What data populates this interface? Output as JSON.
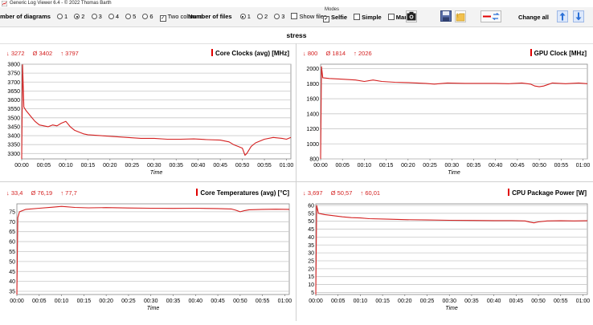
{
  "window": {
    "title": "Generic Log Viewer 6.4 - © 2022 Thomas Barth"
  },
  "toolbar": {
    "num_diagrams_label": "Number of diagrams",
    "diagram_options": [
      "1",
      "2",
      "3",
      "4",
      "5",
      "6"
    ],
    "diagram_selected": "2",
    "two_columns_label": "Two columns",
    "num_files_label": "Number of files",
    "file_options": [
      "1",
      "2",
      "3"
    ],
    "file_selected": "1",
    "show_files_label": "Show files",
    "modes_label": "Modes",
    "selfie_label": "Selfie",
    "simple_label": "Simple",
    "marker_label": "Marker",
    "change_all_label": "Change all"
  },
  "subtitle": "stress",
  "colors": {
    "series": "#d42020",
    "accent": "#e00000",
    "grid": "#c8c8c8"
  },
  "panels": [
    {
      "title": "Core Clocks (avg) [MHz]",
      "min": "↓ 3272",
      "avg": "Ø 3402",
      "max": "↑ 3797"
    },
    {
      "title": "GPU Clock [MHz]",
      "min": "↓ 800",
      "avg": "Ø 1814",
      "max": "↑ 2026"
    },
    {
      "title": "Core Temperatures (avg) [°C]",
      "min": "↓ 33,4",
      "avg": "Ø 76,19",
      "max": "↑ 77,7"
    },
    {
      "title": "CPU Package Power [W]",
      "min": "↓ 3,697",
      "avg": "Ø 50,57",
      "max": "↑ 60,01"
    }
  ],
  "chart_data": [
    {
      "type": "line",
      "title": "Core Clocks (avg) [MHz]",
      "xlabel": "Time",
      "x_ticks": [
        "00:00",
        "00:05",
        "00:10",
        "00:15",
        "00:20",
        "00:25",
        "00:30",
        "00:35",
        "00:40",
        "00:45",
        "00:50",
        "00:55",
        "01:00"
      ],
      "y_ticks": [
        3300,
        3350,
        3400,
        3450,
        3500,
        3550,
        3600,
        3650,
        3700,
        3750,
        3800
      ],
      "ylim": [
        3270,
        3800
      ],
      "xlim_min": [
        0,
        61
      ],
      "series": [
        {
          "points": [
            [
              0,
              3270
            ],
            [
              0.2,
              3797
            ],
            [
              0.5,
              3560
            ],
            [
              1,
              3540
            ],
            [
              2,
              3510
            ],
            [
              3,
              3480
            ],
            [
              4,
              3460
            ],
            [
              5,
              3455
            ],
            [
              6,
              3450
            ],
            [
              7,
              3460
            ],
            [
              8,
              3455
            ],
            [
              9,
              3470
            ],
            [
              10,
              3480
            ],
            [
              11,
              3450
            ],
            [
              12,
              3430
            ],
            [
              13,
              3420
            ],
            [
              14,
              3410
            ],
            [
              15,
              3405
            ],
            [
              18,
              3400
            ],
            [
              21,
              3395
            ],
            [
              24,
              3390
            ],
            [
              27,
              3385
            ],
            [
              30,
              3385
            ],
            [
              33,
              3380
            ],
            [
              36,
              3380
            ],
            [
              39,
              3382
            ],
            [
              42,
              3378
            ],
            [
              45,
              3375
            ],
            [
              47,
              3365
            ],
            [
              48,
              3350
            ],
            [
              49,
              3340
            ],
            [
              50,
              3330
            ],
            [
              50.6,
              3290
            ],
            [
              51,
              3300
            ],
            [
              52,
              3340
            ],
            [
              53,
              3360
            ],
            [
              55,
              3380
            ],
            [
              57,
              3390
            ],
            [
              59,
              3385
            ],
            [
              60,
              3380
            ],
            [
              61,
              3390
            ]
          ]
        }
      ]
    },
    {
      "type": "line",
      "title": "GPU Clock [MHz]",
      "xlabel": "Time",
      "x_ticks": [
        "00:00",
        "00:05",
        "00:10",
        "00:15",
        "00:20",
        "00:25",
        "00:30",
        "00:35",
        "00:40",
        "00:45",
        "00:50",
        "00:55",
        "01:00"
      ],
      "y_ticks": [
        800,
        1000,
        1200,
        1400,
        1600,
        1800,
        2000
      ],
      "ylim": [
        800,
        2060
      ],
      "xlim_min": [
        0,
        61
      ],
      "series": [
        {
          "points": [
            [
              0,
              800
            ],
            [
              0.2,
              2026
            ],
            [
              0.5,
              1880
            ],
            [
              2,
              1870
            ],
            [
              5,
              1860
            ],
            [
              8,
              1850
            ],
            [
              10,
              1830
            ],
            [
              12,
              1850
            ],
            [
              14,
              1830
            ],
            [
              17,
              1820
            ],
            [
              20,
              1815
            ],
            [
              24,
              1805
            ],
            [
              26,
              1795
            ],
            [
              29,
              1810
            ],
            [
              33,
              1805
            ],
            [
              37,
              1805
            ],
            [
              40,
              1805
            ],
            [
              43,
              1800
            ],
            [
              46,
              1810
            ],
            [
              48,
              1795
            ],
            [
              49,
              1770
            ],
            [
              50,
              1760
            ],
            [
              51,
              1770
            ],
            [
              52,
              1790
            ],
            [
              53,
              1810
            ],
            [
              56,
              1800
            ],
            [
              59,
              1810
            ],
            [
              61,
              1800
            ]
          ]
        }
      ]
    },
    {
      "type": "line",
      "title": "Core Temperatures (avg) [°C]",
      "xlabel": "Time",
      "x_ticks": [
        "00:00",
        "00:05",
        "00:10",
        "00:15",
        "00:20",
        "00:25",
        "00:30",
        "00:35",
        "00:40",
        "00:45",
        "00:50",
        "00:55",
        "01:00"
      ],
      "y_ticks": [
        35,
        40,
        45,
        50,
        55,
        60,
        65,
        70,
        75
      ],
      "ylim": [
        33.4,
        79
      ],
      "xlim_min": [
        0,
        61
      ],
      "series": [
        {
          "points": [
            [
              0,
              33.4
            ],
            [
              0.2,
              72
            ],
            [
              0.6,
              75
            ],
            [
              2,
              76.2
            ],
            [
              5,
              76.8
            ],
            [
              8,
              77.3
            ],
            [
              10,
              77.7
            ],
            [
              13,
              77.2
            ],
            [
              16,
              77.0
            ],
            [
              20,
              77.1
            ],
            [
              25,
              76.9
            ],
            [
              30,
              76.8
            ],
            [
              35,
              76.7
            ],
            [
              40,
              76.8
            ],
            [
              45,
              76.6
            ],
            [
              48,
              76.4
            ],
            [
              49,
              75.8
            ],
            [
              50,
              75.0
            ],
            [
              51,
              75.6
            ],
            [
              52,
              76.0
            ],
            [
              55,
              76.2
            ],
            [
              58,
              76.3
            ],
            [
              61,
              76.2
            ]
          ]
        }
      ]
    },
    {
      "type": "line",
      "title": "CPU Package Power [W]",
      "xlabel": "Time",
      "x_ticks": [
        "00:00",
        "00:05",
        "00:10",
        "00:15",
        "00:20",
        "00:25",
        "00:30",
        "00:35",
        "00:40",
        "00:45",
        "00:50",
        "00:55",
        "01:00"
      ],
      "y_ticks": [
        5,
        10,
        15,
        20,
        25,
        30,
        35,
        40,
        45,
        50,
        55,
        60
      ],
      "ylim": [
        3.697,
        61
      ],
      "xlim_min": [
        0,
        61
      ],
      "series": [
        {
          "points": [
            [
              0,
              3.697
            ],
            [
              0.2,
              60.01
            ],
            [
              0.6,
              55
            ],
            [
              2,
              54.2
            ],
            [
              4,
              53.5
            ],
            [
              6,
              52.8
            ],
            [
              8,
              52.3
            ],
            [
              10,
              52.1
            ],
            [
              12,
              51.6
            ],
            [
              16,
              51.3
            ],
            [
              20,
              51.0
            ],
            [
              25,
              50.8
            ],
            [
              30,
              50.6
            ],
            [
              35,
              50.5
            ],
            [
              40,
              50.4
            ],
            [
              44,
              50.4
            ],
            [
              47,
              50.2
            ],
            [
              48,
              49.5
            ],
            [
              49,
              49.0
            ],
            [
              50,
              49.6
            ],
            [
              52,
              50.2
            ],
            [
              55,
              50.3
            ],
            [
              58,
              50.2
            ],
            [
              61,
              50.3
            ]
          ]
        }
      ]
    }
  ]
}
